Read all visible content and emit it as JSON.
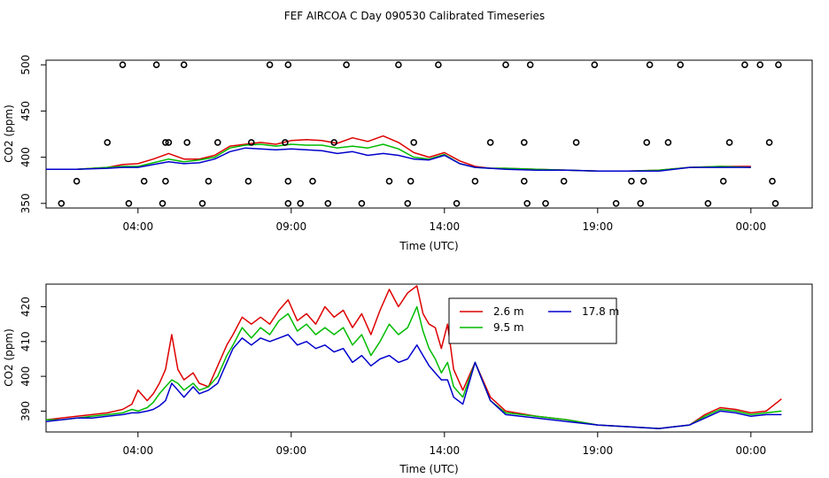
{
  "figure_title": "FEF AIRCOA C  Day 090530  Calibrated Timeseries",
  "chart_data": [
    {
      "type": "line",
      "panel": "top",
      "title": "",
      "xlabel": "Time (UTC)",
      "ylabel": "CO2 (ppm)",
      "xlim": [
        0,
        25.0
      ],
      "ylim": [
        345,
        505
      ],
      "xticks": [
        3,
        8,
        13,
        18,
        23
      ],
      "xtick_labels": [
        "04:00",
        "09:00",
        "14:00",
        "19:00",
        "00:00"
      ],
      "yticks": [
        350,
        400,
        450,
        500
      ],
      "ytick_labels": [
        "350",
        "400",
        "450",
        "500"
      ],
      "series": [
        {
          "name": "2.6 m",
          "color": "#dd0000",
          "x": [
            0,
            1,
            2,
            2.5,
            3,
            3.5,
            4,
            4.5,
            5,
            5.5,
            6,
            6.5,
            7,
            7.5,
            8,
            8.5,
            9,
            9.5,
            10,
            10.5,
            11,
            11.5,
            12,
            12.5,
            13,
            13.5,
            14,
            14.5,
            15,
            16,
            17,
            18,
            19,
            20,
            21,
            22,
            23
          ],
          "values": [
            387,
            387,
            389,
            392,
            393,
            398,
            404,
            398,
            398,
            402,
            412,
            414,
            416,
            414,
            418,
            419,
            418,
            415,
            421,
            417,
            423,
            416,
            405,
            400,
            405,
            396,
            390,
            388,
            388,
            387,
            386,
            385,
            385,
            386,
            389,
            390,
            390
          ]
        },
        {
          "name": "9.5 m",
          "color": "#00bb00",
          "x": [
            0,
            1,
            2,
            2.5,
            3,
            3.5,
            4,
            4.5,
            5,
            5.5,
            6,
            6.5,
            7,
            7.5,
            8,
            8.5,
            9,
            9.5,
            10,
            10.5,
            11,
            11.5,
            12,
            12.5,
            13,
            13.5,
            14,
            14.5,
            15,
            16,
            17,
            18,
            19,
            20,
            21,
            22,
            23
          ],
          "values": [
            387,
            387,
            389,
            390,
            390,
            394,
            398,
            395,
            397,
            400,
            410,
            413,
            414,
            412,
            414,
            413,
            413,
            410,
            412,
            410,
            414,
            409,
            400,
            398,
            403,
            393,
            389,
            388,
            388,
            387,
            386,
            385,
            385,
            386,
            389,
            390,
            389
          ]
        },
        {
          "name": "17.8 m",
          "color": "#0000cc",
          "x": [
            0,
            1,
            2,
            2.5,
            3,
            3.5,
            4,
            4.5,
            5,
            5.5,
            6,
            6.5,
            7,
            7.5,
            8,
            8.5,
            9,
            9.5,
            10,
            10.5,
            11,
            11.5,
            12,
            12.5,
            13,
            13.5,
            14,
            14.5,
            15,
            16,
            17,
            18,
            19,
            20,
            21,
            22,
            23
          ],
          "values": [
            387,
            387,
            388,
            389,
            389,
            392,
            395,
            393,
            394,
            398,
            406,
            410,
            409,
            408,
            409,
            408,
            407,
            404,
            406,
            402,
            404,
            402,
            398,
            397,
            402,
            393,
            389,
            388,
            387,
            386,
            386,
            385,
            385,
            385,
            389,
            389,
            389
          ]
        }
      ],
      "markers": {
        "name": "calibration points",
        "style": "open-circle",
        "x": [
          0.5,
          1.0,
          2.0,
          2.5,
          2.7,
          3.2,
          3.6,
          3.8,
          3.9,
          3.9,
          4.0,
          4.5,
          4.6,
          5.1,
          5.3,
          5.6,
          6.6,
          6.7,
          7.3,
          7.8,
          7.9,
          7.9,
          7.9,
          8.3,
          8.7,
          9.2,
          9.4,
          9.8,
          10.3,
          11.2,
          11.5,
          11.8,
          11.9,
          12.0,
          12.8,
          13.4,
          14.0,
          14.5,
          15.0,
          15.6,
          15.6,
          15.7,
          15.8,
          16.3,
          16.9,
          17.3,
          17.9,
          18.6,
          19.1,
          19.4,
          19.5,
          19.6,
          19.7,
          20.3,
          20.7,
          21.6,
          22.1,
          22.3,
          22.8,
          23.3,
          23.6,
          23.7,
          23.8,
          23.9
        ],
        "values": [
          350,
          374,
          416,
          500,
          350,
          374,
          500,
          350,
          374,
          416,
          416,
          500,
          416,
          350,
          374,
          416,
          374,
          416,
          500,
          416,
          374,
          350,
          500,
          350,
          374,
          350,
          416,
          500,
          350,
          374,
          500,
          350,
          374,
          416,
          500,
          350,
          374,
          416,
          500,
          374,
          416,
          350,
          500,
          350,
          374,
          416,
          500,
          350,
          374,
          350,
          374,
          416,
          500,
          416,
          500,
          350,
          374,
          416,
          500,
          500,
          416,
          374,
          350,
          500
        ]
      }
    },
    {
      "type": "line",
      "panel": "bottom",
      "title": "",
      "xlabel": "Time (UTC)",
      "ylabel": "CO2 (ppm)",
      "xlim": [
        0,
        25.0
      ],
      "ylim": [
        384,
        426.5
      ],
      "xticks": [
        3,
        8,
        13,
        18,
        23
      ],
      "xtick_labels": [
        "04:00",
        "09:00",
        "14:00",
        "19:00",
        "00:00"
      ],
      "yticks": [
        390,
        400,
        410,
        420
      ],
      "ytick_labels": [
        "390",
        "400",
        "410",
        "420"
      ],
      "legend": {
        "position": "top-right",
        "ncol": 2,
        "order": [
          "2.6 m",
          "17.8 m",
          "9.5 m"
        ]
      },
      "series": [
        {
          "name": "2.6 m",
          "color": "#dd0000",
          "x": [
            0,
            0.5,
            1,
            1.5,
            2,
            2.5,
            2.8,
            3.0,
            3.3,
            3.5,
            3.7,
            3.9,
            4.1,
            4.3,
            4.5,
            4.8,
            5.0,
            5.3,
            5.6,
            5.9,
            6.1,
            6.4,
            6.7,
            7.0,
            7.3,
            7.6,
            7.9,
            8.2,
            8.5,
            8.8,
            9.1,
            9.4,
            9.7,
            10.0,
            10.3,
            10.6,
            10.9,
            11.2,
            11.5,
            11.8,
            12.1,
            12.3,
            12.5,
            12.7,
            12.9,
            13.1,
            13.3,
            13.6,
            14.0,
            14.5,
            15.0,
            16.0,
            17.0,
            18.0,
            19.0,
            20.0,
            21.0,
            21.5,
            22.0,
            22.5,
            23.0,
            23.5,
            24.0
          ],
          "values": [
            387.5,
            388,
            388.5,
            389,
            389.5,
            390.5,
            392,
            396,
            393,
            395,
            398,
            402,
            412,
            402,
            399,
            401,
            398,
            397,
            403,
            409,
            412,
            417,
            415,
            417,
            415,
            419,
            422,
            416,
            418,
            415,
            420,
            417,
            419,
            414,
            418,
            412,
            419,
            425,
            420,
            424,
            426,
            418,
            415,
            414,
            408,
            415,
            402,
            396,
            404,
            394,
            390,
            388.5,
            387.5,
            386,
            385.5,
            385,
            386,
            389,
            391,
            390.5,
            389.5,
            390,
            393.5
          ]
        },
        {
          "name": "9.5 m",
          "color": "#00bb00",
          "x": [
            0,
            0.5,
            1,
            1.5,
            2,
            2.5,
            2.8,
            3.0,
            3.3,
            3.5,
            3.7,
            3.9,
            4.1,
            4.3,
            4.5,
            4.8,
            5.0,
            5.3,
            5.6,
            5.9,
            6.1,
            6.4,
            6.7,
            7.0,
            7.3,
            7.6,
            7.9,
            8.2,
            8.5,
            8.8,
            9.1,
            9.4,
            9.7,
            10.0,
            10.3,
            10.6,
            10.9,
            11.2,
            11.5,
            11.8,
            12.1,
            12.3,
            12.5,
            12.7,
            12.9,
            13.1,
            13.3,
            13.6,
            14.0,
            14.5,
            15.0,
            16.0,
            17.0,
            18.0,
            19.0,
            20.0,
            21.0,
            21.5,
            22.0,
            22.5,
            23.0,
            23.5,
            24.0
          ],
          "values": [
            387.5,
            387.5,
            388,
            388.5,
            389,
            389.5,
            390.5,
            390,
            391,
            392.5,
            395,
            397,
            399,
            398,
            396,
            398,
            396,
            397,
            400,
            406,
            409,
            414,
            411,
            414,
            412,
            416,
            418,
            413,
            415,
            412,
            414,
            412,
            414,
            409,
            412,
            406,
            410,
            415,
            412,
            414,
            420,
            413,
            408,
            405,
            401,
            404,
            397,
            394,
            404,
            393,
            389.5,
            388.5,
            387.5,
            386,
            385.5,
            385,
            386,
            388.5,
            390.5,
            390,
            389,
            389.5,
            390
          ]
        },
        {
          "name": "17.8 m",
          "color": "#0000cc",
          "x": [
            0,
            0.5,
            1,
            1.5,
            2,
            2.5,
            2.8,
            3.0,
            3.3,
            3.5,
            3.7,
            3.9,
            4.1,
            4.3,
            4.5,
            4.8,
            5.0,
            5.3,
            5.6,
            5.9,
            6.1,
            6.4,
            6.7,
            7.0,
            7.3,
            7.6,
            7.9,
            8.2,
            8.5,
            8.8,
            9.1,
            9.4,
            9.7,
            10.0,
            10.3,
            10.6,
            10.9,
            11.2,
            11.5,
            11.8,
            12.1,
            12.3,
            12.5,
            12.7,
            12.9,
            13.1,
            13.3,
            13.6,
            14.0,
            14.5,
            15.0,
            16.0,
            17.0,
            18.0,
            19.0,
            20.0,
            21.0,
            21.5,
            22.0,
            22.5,
            23.0,
            23.5,
            24.0
          ],
          "values": [
            387,
            387.5,
            388,
            388,
            388.5,
            389,
            389.5,
            389.5,
            390,
            390.5,
            391.5,
            393,
            398,
            396,
            394,
            397,
            395,
            396,
            398,
            404,
            408,
            411,
            409,
            411,
            410,
            411,
            412,
            409,
            410,
            408,
            409,
            407,
            408,
            404,
            406,
            403,
            405,
            406,
            404,
            405,
            409,
            406,
            403,
            401,
            399,
            399,
            394,
            392,
            404,
            393,
            389,
            388,
            387,
            386,
            385.5,
            385,
            386,
            388,
            390,
            389.5,
            388.5,
            389,
            389
          ]
        }
      ]
    }
  ]
}
